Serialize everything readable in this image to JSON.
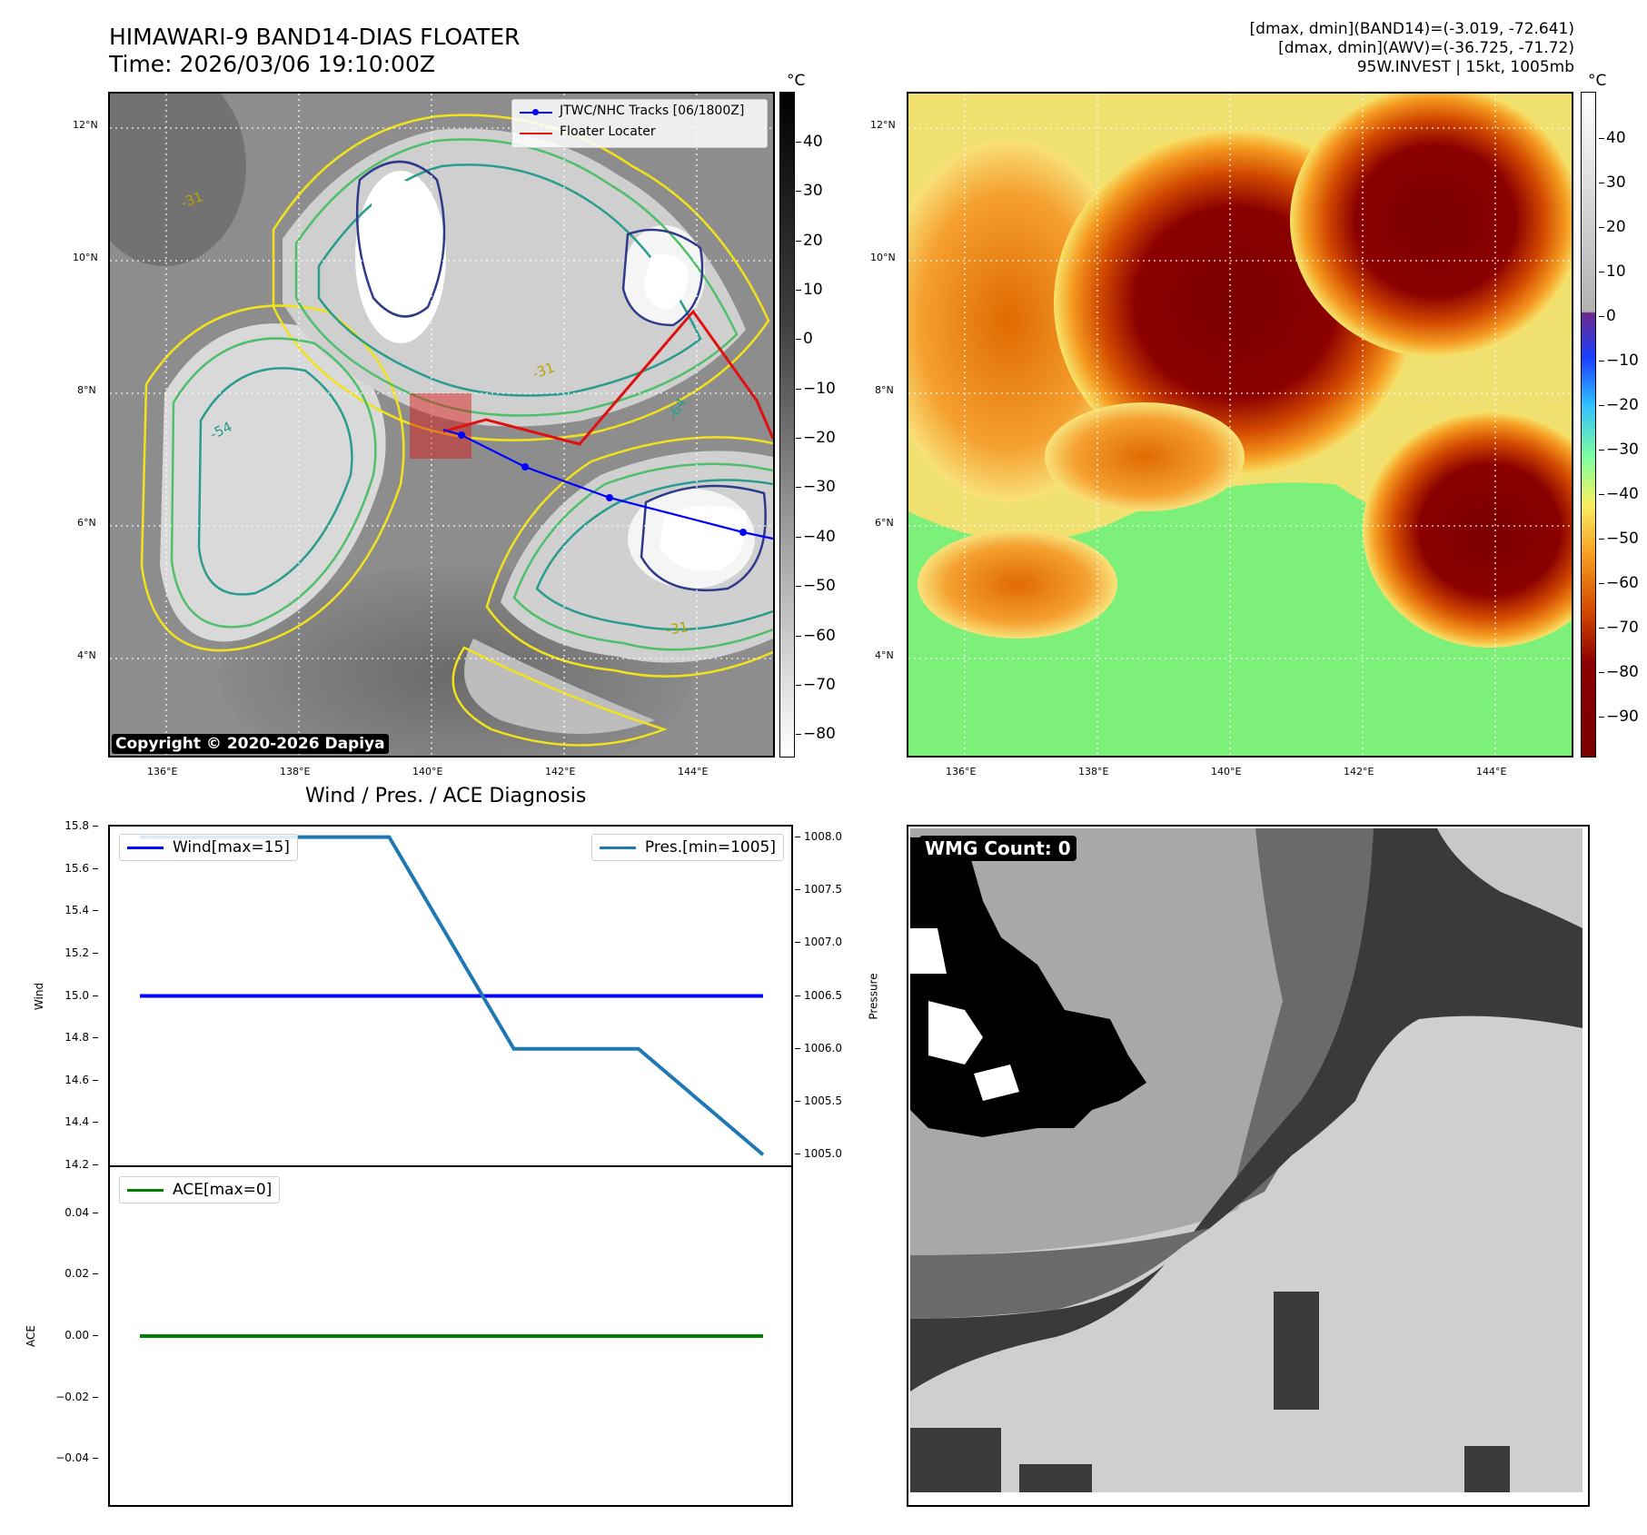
{
  "header": {
    "title_line1": "HIMAWARI-9 BAND14-DIAS FLOATER",
    "title_line2": "Time: 2026/03/06 19:10:00Z",
    "info_line1": "[dmax, dmin](BAND14)=(-3.019, -72.641)",
    "info_line2": "[dmax, dmin](AWV)=(-36.725, -71.72)",
    "info_line3": "95W.INVEST | 15kt, 1005mb"
  },
  "ir_panel": {
    "legend_tracks": "JTWC/NHC Tracks [06/1800Z]",
    "legend_floater": "Floater Locater",
    "copyright": "Copyright © 2020-2026 Dapiya",
    "lat_labels": [
      "12°N",
      "10°N",
      "8°N",
      "6°N",
      "4°N"
    ],
    "lon_labels": [
      "136°E",
      "138°E",
      "140°E",
      "142°E",
      "144°E"
    ],
    "colorbar_unit": "°C",
    "colorbar_ticks": [
      "40",
      "30",
      "20",
      "10",
      "0",
      "−10",
      "−20",
      "−30",
      "−40",
      "−50",
      "−60",
      "−70",
      "−80"
    ],
    "contour_labels": [
      "-31",
      "-54",
      "-31",
      "-64",
      "-31"
    ],
    "colors": {
      "contour_yellow": "#f2e21c",
      "contour_green": "#4fbf6a",
      "contour_teal": "#2a9c8c",
      "contour_navy": "#2f3a8a",
      "track": "#0000ff",
      "floater": "#e01010"
    }
  },
  "awv_panel": {
    "lat_labels": [
      "12°N",
      "10°N",
      "8°N",
      "6°N",
      "4°N"
    ],
    "lon_labels": [
      "136°E",
      "138°E",
      "140°E",
      "142°E",
      "144°E"
    ],
    "colorbar_unit": "°C",
    "colorbar_ticks": [
      "40",
      "30",
      "20",
      "10",
      "0",
      "−10",
      "−20",
      "−30",
      "−40",
      "−50",
      "−60",
      "−70",
      "−80",
      "−90"
    ]
  },
  "wmg_panel": {
    "badge": "WMG Count: 0"
  },
  "diagnosis": {
    "title": "Wind / Pres. / ACE Diagnosis",
    "wind_ylabel": "Wind",
    "pres_ylabel": "Pressure",
    "ace_ylabel": "ACE",
    "wind_ticks": [
      "15.8",
      "15.6",
      "15.4",
      "15.2",
      "15.0",
      "14.8",
      "14.6",
      "14.4",
      "14.2"
    ],
    "pres_ticks": [
      "1008.0",
      "1007.5",
      "1007.0",
      "1006.5",
      "1006.0",
      "1005.5",
      "1005.0"
    ],
    "ace_ticks": [
      "0.04",
      "0.02",
      "0.00",
      "−0.02",
      "−0.04"
    ],
    "legend_wind": "Wind[max=15]",
    "legend_pres": "Pres.[min=1005]",
    "legend_ace": "ACE[max=0]"
  },
  "chart_data": [
    {
      "type": "line",
      "title": "Wind / Pres. / ACE Diagnosis",
      "ylabel": "Wind",
      "ylim": [
        14.2,
        15.8
      ],
      "x": [
        0,
        1,
        2,
        3,
        4,
        5
      ],
      "series": [
        {
          "name": "Wind[max=15]",
          "values": [
            15,
            15,
            15,
            15,
            15,
            15
          ],
          "color": "#0000ff"
        }
      ]
    },
    {
      "type": "line",
      "ylabel": "Pressure",
      "ylim": [
        1004.9,
        1008.1
      ],
      "x": [
        0,
        1,
        2,
        3,
        4,
        5
      ],
      "series": [
        {
          "name": "Pres.[min=1005]",
          "values": [
            1008,
            1008,
            1008,
            1006,
            1006,
            1005
          ],
          "color": "#1f77b4"
        }
      ]
    },
    {
      "type": "line",
      "ylabel": "ACE",
      "ylim": [
        -0.055,
        0.055
      ],
      "x": [
        0,
        1,
        2,
        3,
        4,
        5
      ],
      "series": [
        {
          "name": "ACE[max=0]",
          "values": [
            0,
            0,
            0,
            0,
            0,
            0
          ],
          "color": "#008000"
        }
      ]
    }
  ]
}
